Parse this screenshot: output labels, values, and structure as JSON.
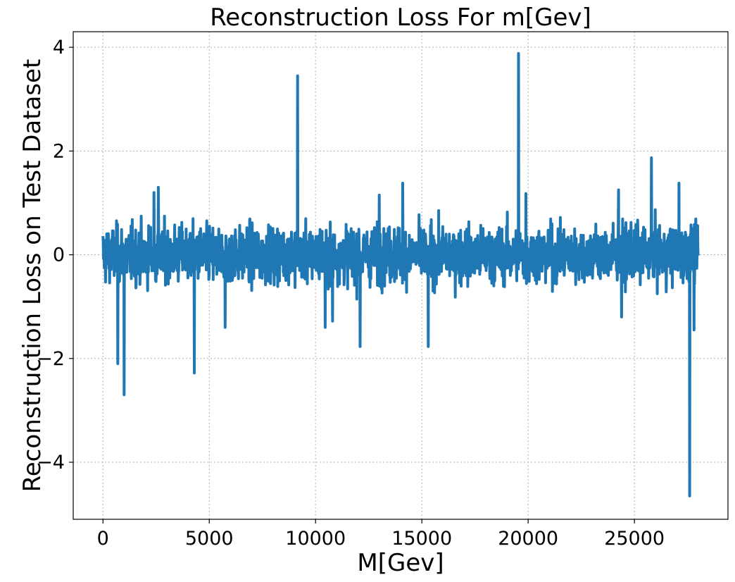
{
  "chart_data": {
    "type": "line",
    "title": "Reconstruction Loss For m[Gev]",
    "xlabel": "M[Gev]",
    "ylabel": "Reconstruction Loss on Test Dataset",
    "xlim": [
      -1400,
      29400
    ],
    "ylim": [
      -5.1,
      4.3
    ],
    "xticks": [
      0,
      5000,
      10000,
      15000,
      20000,
      25000
    ],
    "xtick_labels": [
      "0",
      "5000",
      "10000",
      "15000",
      "20000",
      "25000"
    ],
    "yticks": [
      -4,
      -2,
      0,
      2,
      4
    ],
    "ytick_labels": [
      "−4",
      "−2",
      "0",
      "2",
      "4"
    ],
    "grid": true,
    "series": [
      {
        "color": "#1f77b4",
        "x_range": [
          0,
          28000
        ],
        "baseline_noise": {
          "typical_amplitude": 0.3,
          "band_max": 0.9,
          "band_min": -0.9
        },
        "x": [
          0,
          700,
          1000,
          2400,
          2600,
          4300,
          5750,
          9150,
          10450,
          10800,
          12100,
          13000,
          14100,
          15300,
          19550,
          19900,
          24250,
          24400,
          25800,
          27100,
          27600,
          27800,
          28000
        ],
        "y": [
          0.0,
          -2.1,
          -2.7,
          1.2,
          1.3,
          -2.28,
          -1.4,
          3.45,
          -1.4,
          -1.28,
          -1.77,
          1.15,
          1.38,
          -1.77,
          3.88,
          1.18,
          1.25,
          -1.2,
          1.87,
          1.38,
          -4.65,
          -1.45,
          0.0
        ]
      }
    ]
  }
}
